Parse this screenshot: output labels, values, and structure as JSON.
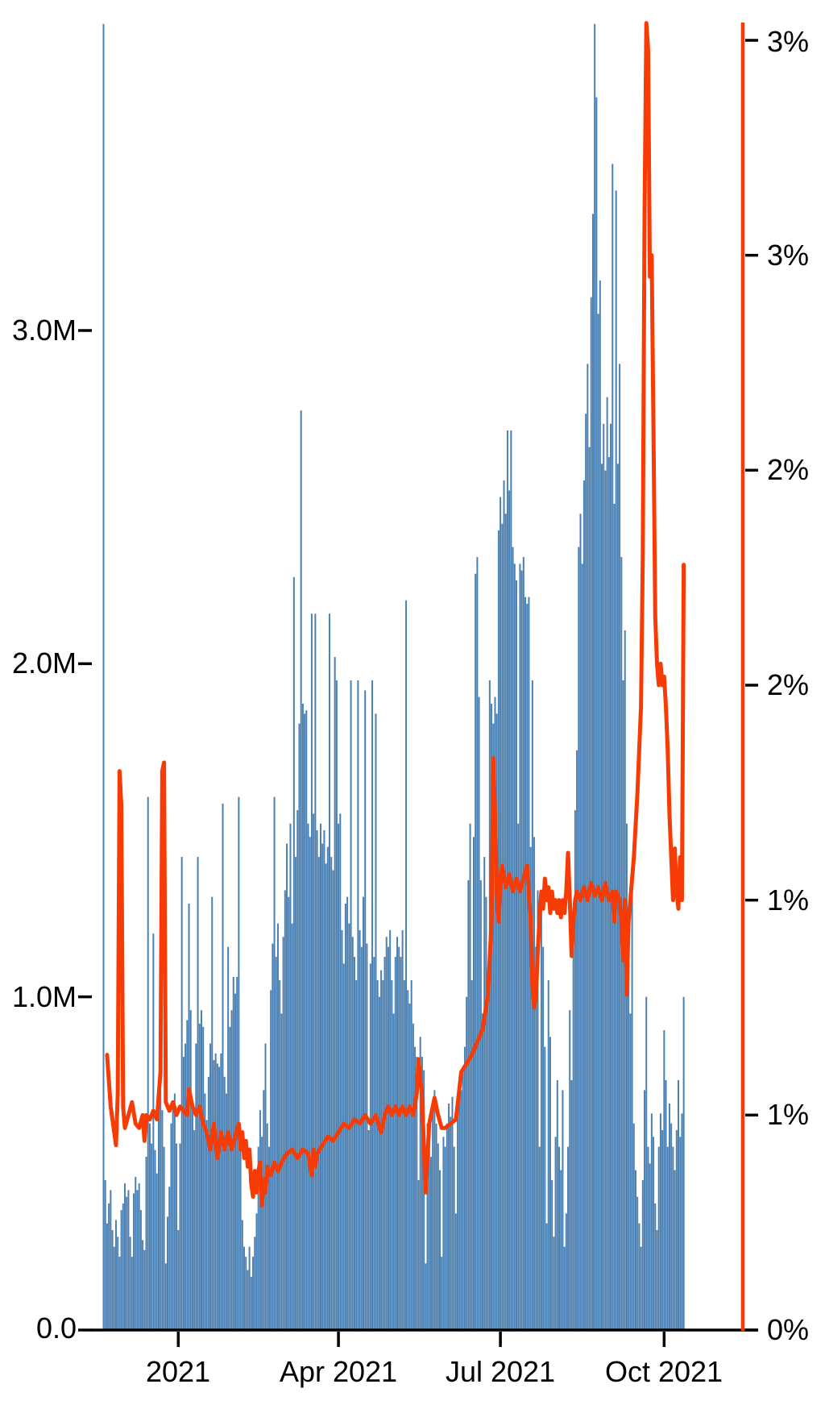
{
  "chart_data": {
    "type": "bar+line combo, daily time series",
    "x_axis": {
      "tick_labels": [
        "2021",
        "Apr 2021",
        "Jul 2021",
        "Oct 2021"
      ],
      "tick_day_indices": [
        42,
        132,
        223,
        315
      ],
      "start_date": "2020-11-20",
      "end_date": "2021-10-12",
      "n_days": 327
    },
    "left_axis": {
      "tick_labels": [
        "3.0M",
        "2.0M",
        "1.0M",
        "0.0"
      ],
      "tick_values_millions": [
        3,
        2,
        1,
        0
      ],
      "plot_max_millions": 3.93
    },
    "right_axis": {
      "tick_labels": [
        "3%",
        "3%",
        "2%",
        "2%",
        "1%",
        "1%",
        "0%"
      ],
      "tick_values_percent": [
        3.0,
        2.5,
        2.0,
        1.5,
        1.0,
        0.5,
        0.0
      ],
      "plot_max_percent": 3.05
    },
    "series": [
      {
        "name": "daily-count-bars",
        "type": "bar",
        "unit": "millions",
        "color": "#4B80B2",
        "start_date": "2020-11-20",
        "values": [
          3.92,
          0.45,
          0.32,
          0.38,
          0.42,
          0.3,
          0.25,
          0.33,
          0.28,
          0.22,
          0.36,
          0.38,
          0.44,
          0.4,
          0.42,
          0.28,
          0.22,
          0.41,
          0.46,
          0.42,
          0.44,
          0.36,
          0.27,
          0.24,
          0.52,
          1.6,
          0.62,
          0.56,
          1.19,
          0.54,
          0.47,
          0.68,
          0.72,
          0.66,
          0.55,
          0.2,
          0.34,
          0.43,
          0.62,
          0.67,
          0.71,
          0.56,
          0.3,
          0.56,
          1.42,
          0.82,
          0.86,
          0.93,
          1.28,
          0.96,
          0.66,
          0.6,
          0.86,
          1.42,
          0.92,
          0.96,
          0.91,
          0.71,
          0.63,
          0.76,
          0.86,
          1.3,
          0.81,
          0.83,
          0.8,
          0.79,
          0.83,
          1.58,
          0.76,
          0.71,
          1.15,
          0.91,
          0.96,
          1.06,
          1.01,
          1.06,
          1.6,
          0.58,
          0.33,
          0.25,
          0.22,
          0.18,
          0.25,
          0.16,
          0.22,
          0.28,
          0.35,
          0.55,
          0.66,
          0.58,
          0.72,
          0.86,
          0.62,
          0.55,
          1.02,
          1.16,
          1.6,
          1.12,
          1.22,
          1.05,
          0.95,
          1.18,
          1.32,
          1.46,
          1.3,
          1.52,
          1.22,
          2.26,
          1.42,
          1.56,
          1.82,
          2.76,
          1.88,
          1.85,
          1.86,
          1.52,
          1.48,
          2.15,
          1.55,
          2.15,
          1.5,
          1.42,
          1.52,
          1.46,
          1.5,
          1.4,
          1.45,
          2.15,
          1.42,
          1.38,
          2.02,
          1.95,
          1.52,
          1.55,
          1.2,
          1.1,
          1.28,
          1.3,
          1.22,
          1.95,
          1.18,
          1.12,
          1.05,
          1.95,
          1.2,
          1.15,
          1.3,
          1.92,
          1.16,
          0.6,
          1.1,
          1.95,
          1.12,
          1.85,
          1.05,
          1.0,
          1.08,
          1.05,
          1.12,
          1.18,
          1.15,
          1.2,
          1.05,
          0.95,
          1.12,
          1.18,
          1.15,
          1.12,
          1.2,
          1.05,
          2.19,
          1.02,
          0.98,
          1.05,
          0.92,
          0.85,
          0.82,
          0.45,
          0.88,
          0.82,
          0.78,
          0.2,
          0.62,
          0.58,
          0.52,
          0.66,
          0.72,
          0.62,
          0.56,
          0.48,
          0.22,
          0.58,
          0.55,
          0.62,
          0.68,
          0.64,
          0.7,
          0.55,
          0.35,
          0.68,
          0.75,
          0.72,
          0.78,
          0.85,
          1.0,
          1.35,
          1.52,
          1.05,
          1.48,
          2.27,
          2.32,
          1.9,
          1.35,
          0.95,
          1.42,
          1.3,
          0.98,
          1.95,
          1.88,
          1.82,
          1.9,
          1.85,
          2.4,
          2.5,
          2.42,
          2.55,
          2.45,
          2.7,
          2.52,
          2.7,
          2.35,
          2.3,
          2.25,
          1.52,
          2.3,
          2.28,
          2.32,
          2.2,
          2.18,
          2.2,
          1.45,
          1.95,
          1.48,
          1.15,
          1.32,
          0.55,
          1.3,
          1.15,
          0.85,
          0.32,
          1.05,
          0.88,
          0.45,
          0.28,
          0.58,
          0.75,
          0.55,
          0.48,
          0.72,
          0.25,
          0.35,
          0.55,
          0.96,
          0.75,
          1.15,
          1.56,
          1.74,
          2.35,
          2.45,
          2.3,
          2.55,
          2.75,
          2.9,
          2.65,
          3.1,
          3.35,
          3.92,
          3.7,
          3.05,
          3.15,
          2.6,
          2.72,
          2.58,
          2.8,
          2.62,
          2.72,
          3.5,
          2.48,
          3.42,
          2.6,
          2.9,
          2.32,
          1.95,
          2.1,
          1.52,
          1.18,
          0.95,
          1.35,
          0.62,
          0.48,
          0.4,
          0.32,
          0.25,
          0.45,
          0.72,
          1.0,
          0.55,
          0.5,
          0.65,
          0.58,
          0.38,
          0.3,
          0.55,
          0.65,
          0.6,
          0.9,
          0.75,
          0.55,
          0.68,
          0.62,
          0.55,
          0.48,
          0.6,
          0.75,
          0.58,
          0.65,
          1.0
        ]
      },
      {
        "name": "percent-rate-line",
        "type": "line",
        "unit": "percent",
        "color": "#F73B05",
        "points": [
          [
            2,
            0.64
          ],
          [
            4,
            0.52
          ],
          [
            6,
            0.46
          ],
          [
            7,
            0.43
          ],
          [
            8,
            0.55
          ],
          [
            9,
            1.3
          ],
          [
            10,
            1.22
          ],
          [
            11,
            0.52
          ],
          [
            12,
            0.47
          ],
          [
            14,
            0.5
          ],
          [
            16,
            0.53
          ],
          [
            18,
            0.48
          ],
          [
            20,
            0.47
          ],
          [
            22,
            0.5
          ],
          [
            23,
            0.44
          ],
          [
            24,
            0.5
          ],
          [
            26,
            0.49
          ],
          [
            28,
            0.51
          ],
          [
            30,
            0.49
          ],
          [
            32,
            0.6
          ],
          [
            33,
            1.3
          ],
          [
            34,
            1.32
          ],
          [
            35,
            0.53
          ],
          [
            37,
            0.51
          ],
          [
            39,
            0.53
          ],
          [
            41,
            0.5
          ],
          [
            43,
            0.52
          ],
          [
            45,
            0.51
          ],
          [
            47,
            0.5
          ],
          [
            48,
            0.56
          ],
          [
            50,
            0.52
          ],
          [
            52,
            0.5
          ],
          [
            54,
            0.52
          ],
          [
            56,
            0.48
          ],
          [
            58,
            0.46
          ],
          [
            60,
            0.42
          ],
          [
            62,
            0.48
          ],
          [
            64,
            0.4
          ],
          [
            66,
            0.46
          ],
          [
            68,
            0.42
          ],
          [
            70,
            0.46
          ],
          [
            72,
            0.42
          ],
          [
            74,
            0.45
          ],
          [
            76,
            0.48
          ],
          [
            77,
            0.42
          ],
          [
            78,
            0.46
          ],
          [
            79,
            0.4
          ],
          [
            80,
            0.44
          ],
          [
            81,
            0.38
          ],
          [
            82,
            0.42
          ],
          [
            83,
            0.34
          ],
          [
            84,
            0.31
          ],
          [
            85,
            0.37
          ],
          [
            86,
            0.32
          ],
          [
            87,
            0.37
          ],
          [
            88,
            0.39
          ],
          [
            89,
            0.29
          ],
          [
            90,
            0.35
          ],
          [
            91,
            0.32
          ],
          [
            92,
            0.38
          ],
          [
            94,
            0.36
          ],
          [
            96,
            0.39
          ],
          [
            98,
            0.37
          ],
          [
            100,
            0.39
          ],
          [
            103,
            0.41
          ],
          [
            106,
            0.42
          ],
          [
            109,
            0.4
          ],
          [
            112,
            0.42
          ],
          [
            115,
            0.41
          ],
          [
            117,
            0.36
          ],
          [
            118,
            0.42
          ],
          [
            119,
            0.38
          ],
          [
            120,
            0.41
          ],
          [
            123,
            0.43
          ],
          [
            126,
            0.45
          ],
          [
            129,
            0.44
          ],
          [
            132,
            0.46
          ],
          [
            135,
            0.48
          ],
          [
            138,
            0.47
          ],
          [
            141,
            0.49
          ],
          [
            144,
            0.48
          ],
          [
            147,
            0.5
          ],
          [
            150,
            0.48
          ],
          [
            153,
            0.5
          ],
          [
            156,
            0.46
          ],
          [
            158,
            0.5
          ],
          [
            160,
            0.52
          ],
          [
            162,
            0.5
          ],
          [
            164,
            0.52
          ],
          [
            166,
            0.5
          ],
          [
            168,
            0.52
          ],
          [
            170,
            0.5
          ],
          [
            172,
            0.52
          ],
          [
            174,
            0.5
          ],
          [
            176,
            0.55
          ],
          [
            177,
            0.63
          ],
          [
            179,
            0.54
          ],
          [
            181,
            0.32
          ],
          [
            183,
            0.48
          ],
          [
            186,
            0.54
          ],
          [
            188,
            0.5
          ],
          [
            190,
            0.47
          ],
          [
            192,
            0.47
          ],
          [
            195,
            0.48
          ],
          [
            198,
            0.49
          ],
          [
            201,
            0.6
          ],
          [
            204,
            0.62
          ],
          [
            207,
            0.64
          ],
          [
            210,
            0.67
          ],
          [
            213,
            0.7
          ],
          [
            216,
            0.78
          ],
          [
            218,
            0.95
          ],
          [
            219,
            1.33
          ],
          [
            220,
            1.2
          ],
          [
            221,
            1.02
          ],
          [
            222,
            0.95
          ],
          [
            223,
            1.05
          ],
          [
            224,
            1.08
          ],
          [
            226,
            1.03
          ],
          [
            228,
            1.06
          ],
          [
            230,
            1.02
          ],
          [
            232,
            1.05
          ],
          [
            234,
            1.02
          ],
          [
            236,
            1.05
          ],
          [
            238,
            1.08
          ],
          [
            240,
            0.95
          ],
          [
            241,
            0.8
          ],
          [
            242,
            0.75
          ],
          [
            243,
            0.78
          ],
          [
            244,
            0.88
          ],
          [
            245,
            0.96
          ],
          [
            246,
            1.02
          ],
          [
            247,
            0.98
          ],
          [
            248,
            1.05
          ],
          [
            249,
            1.0
          ],
          [
            250,
            1.03
          ],
          [
            251,
            0.97
          ],
          [
            252,
            1.02
          ],
          [
            253,
            0.98
          ],
          [
            254,
            1.0
          ],
          [
            255,
            0.97
          ],
          [
            256,
            1.0
          ],
          [
            257,
            0.96
          ],
          [
            258,
            1.0
          ],
          [
            259,
            0.97
          ],
          [
            260,
            1.02
          ],
          [
            261,
            1.11
          ],
          [
            262,
            1.0
          ],
          [
            263,
            0.87
          ],
          [
            264,
            0.95
          ],
          [
            265,
            1.0
          ],
          [
            266,
            1.02
          ],
          [
            268,
            1.0
          ],
          [
            270,
            1.03
          ],
          [
            272,
            1.0
          ],
          [
            274,
            1.04
          ],
          [
            276,
            1.01
          ],
          [
            278,
            1.03
          ],
          [
            280,
            1.0
          ],
          [
            282,
            1.04
          ],
          [
            284,
            1.0
          ],
          [
            286,
            1.02
          ],
          [
            287,
            0.95
          ],
          [
            288,
            1.02
          ],
          [
            290,
            1.0
          ],
          [
            291,
            0.95
          ],
          [
            292,
            0.86
          ],
          [
            293,
            1.0
          ],
          [
            294,
            0.78
          ],
          [
            295,
            0.95
          ],
          [
            296,
            1.0
          ],
          [
            298,
            1.1
          ],
          [
            300,
            1.25
          ],
          [
            302,
            1.45
          ],
          [
            303,
            1.8
          ],
          [
            304,
            2.6
          ],
          [
            305,
            3.04
          ],
          [
            306,
            2.98
          ],
          [
            307,
            2.45
          ],
          [
            308,
            2.5
          ],
          [
            309,
            2.1
          ],
          [
            310,
            1.66
          ],
          [
            311,
            1.55
          ],
          [
            312,
            1.5
          ],
          [
            313,
            1.55
          ],
          [
            314,
            1.5
          ],
          [
            315,
            1.52
          ],
          [
            316,
            1.45
          ],
          [
            317,
            1.35
          ],
          [
            318,
            1.2
          ],
          [
            319,
            1.1
          ],
          [
            320,
            1.0
          ],
          [
            321,
            1.12
          ],
          [
            322,
            1.02
          ],
          [
            323,
            0.98
          ],
          [
            324,
            1.1
          ],
          [
            325,
            1.0
          ],
          [
            326,
            1.78
          ]
        ]
      }
    ],
    "layout": {
      "grid": false,
      "legend": "none",
      "left_spine": "none",
      "bottom_spine_color": "#000000",
      "right_spine_color": "#F73B05"
    }
  },
  "colors": {
    "background": "#ffffff",
    "bar": "#4B80B2",
    "line": "#F73B05",
    "axis_text": "#000000"
  }
}
